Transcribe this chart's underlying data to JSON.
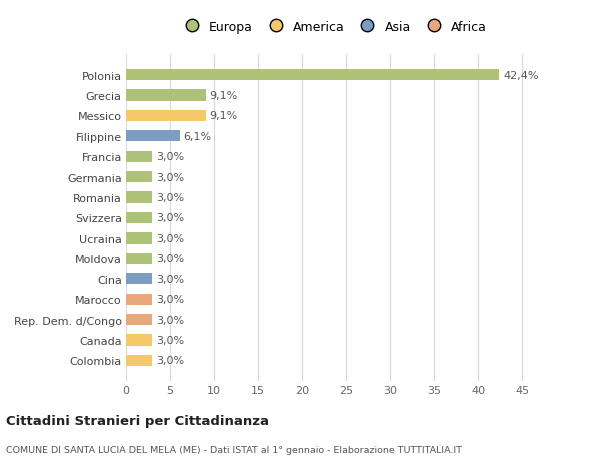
{
  "categories": [
    "Polonia",
    "Grecia",
    "Messico",
    "Filippine",
    "Francia",
    "Germania",
    "Romania",
    "Svizzera",
    "Ucraina",
    "Moldova",
    "Cina",
    "Marocco",
    "Rep. Dem. d/Congo",
    "Canada",
    "Colombia"
  ],
  "values": [
    42.4,
    9.1,
    9.1,
    6.1,
    3.0,
    3.0,
    3.0,
    3.0,
    3.0,
    3.0,
    3.0,
    3.0,
    3.0,
    3.0,
    3.0
  ],
  "labels": [
    "42,4%",
    "9,1%",
    "9,1%",
    "6,1%",
    "3,0%",
    "3,0%",
    "3,0%",
    "3,0%",
    "3,0%",
    "3,0%",
    "3,0%",
    "3,0%",
    "3,0%",
    "3,0%",
    "3,0%"
  ],
  "colors": [
    "#adc178",
    "#adc178",
    "#f5c96a",
    "#7b9dc4",
    "#adc178",
    "#adc178",
    "#adc178",
    "#adc178",
    "#adc178",
    "#adc178",
    "#7b9dc4",
    "#e8a87c",
    "#e8a87c",
    "#f5c96a",
    "#f5c96a"
  ],
  "legend_labels": [
    "Europa",
    "America",
    "Asia",
    "Africa"
  ],
  "legend_colors": [
    "#adc178",
    "#f5c96a",
    "#7b9dc4",
    "#e8a87c"
  ],
  "xlim": [
    0,
    47
  ],
  "xticks": [
    0,
    5,
    10,
    15,
    20,
    25,
    30,
    35,
    40,
    45
  ],
  "title": "Cittadini Stranieri per Cittadinanza",
  "subtitle": "COMUNE DI SANTA LUCIA DEL MELA (ME) - Dati ISTAT al 1° gennaio - Elaborazione TUTTITALIA.IT",
  "background_color": "#ffffff",
  "plot_background": "#ffffff",
  "grid_color": "#d8d8d8",
  "label_fontsize": 8,
  "tick_fontsize": 8,
  "bar_height": 0.55
}
